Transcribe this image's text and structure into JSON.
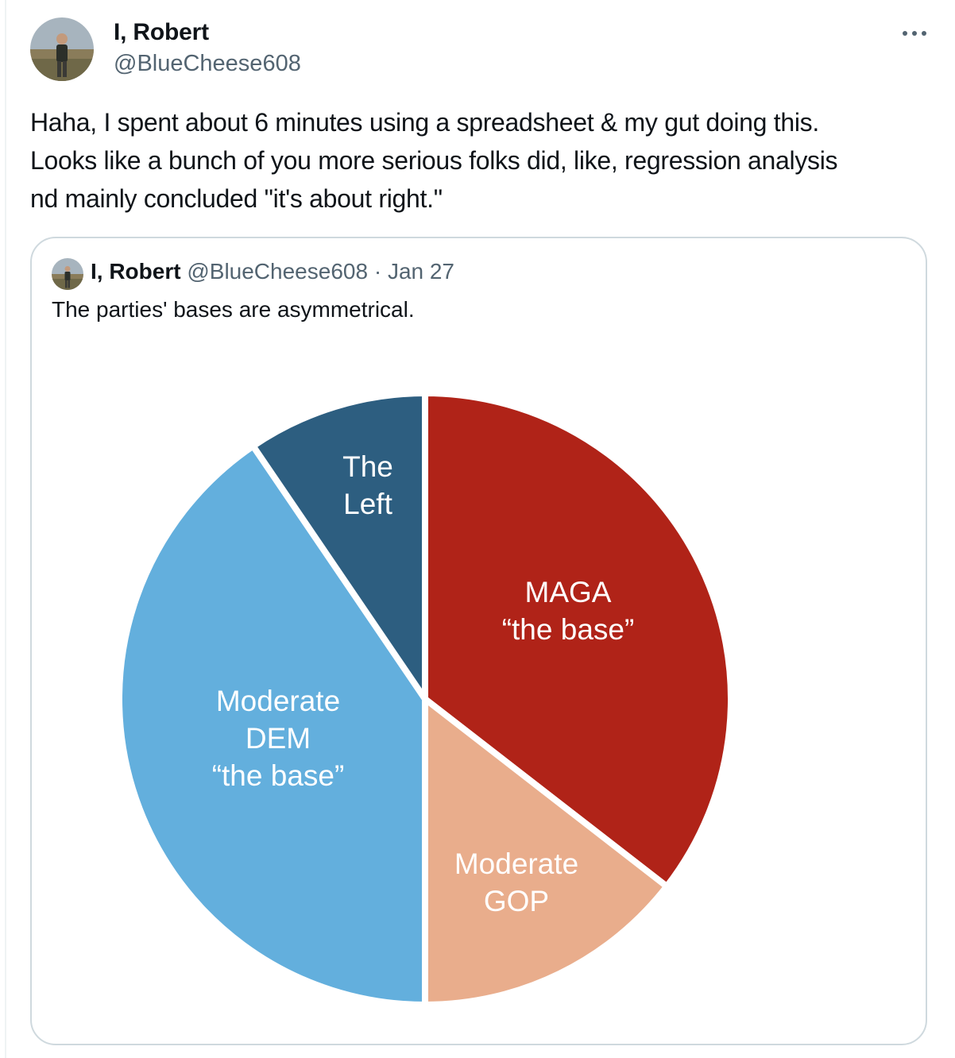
{
  "tweet": {
    "author_name": "I, Robert",
    "author_handle": "@BlueCheese608",
    "more_icon": "more-horizontal-icon",
    "text_lines": [
      "Haha, I spent about 6 minutes using a spreadsheet & my gut doing this.",
      "Looks like a bunch of you more serious folks did, like, regression analysis",
      "nd mainly concluded \"it's about right.\""
    ]
  },
  "quote": {
    "author_name": "I, Robert",
    "author_handle": "@BlueCheese608",
    "separator": "·",
    "date": "Jan 27",
    "text": "The parties' bases are asymmetrical."
  },
  "chart_data": {
    "type": "pie",
    "start_angle_deg": 0,
    "direction": "clockwise",
    "slices": [
      {
        "label_lines": [
          "MAGA",
          "“the base”"
        ],
        "value": 35.5,
        "color": "#b02318"
      },
      {
        "label_lines": [
          "Moderate",
          "GOP"
        ],
        "value": 14.5,
        "color": "#e9ad8c"
      },
      {
        "label_lines": [
          "Moderate",
          "DEM",
          "“the base”"
        ],
        "value": 40.5,
        "color": "#63afdd"
      },
      {
        "label_lines": [
          "The",
          "Left"
        ],
        "value": 9.5,
        "color": "#2d5e80"
      }
    ]
  }
}
